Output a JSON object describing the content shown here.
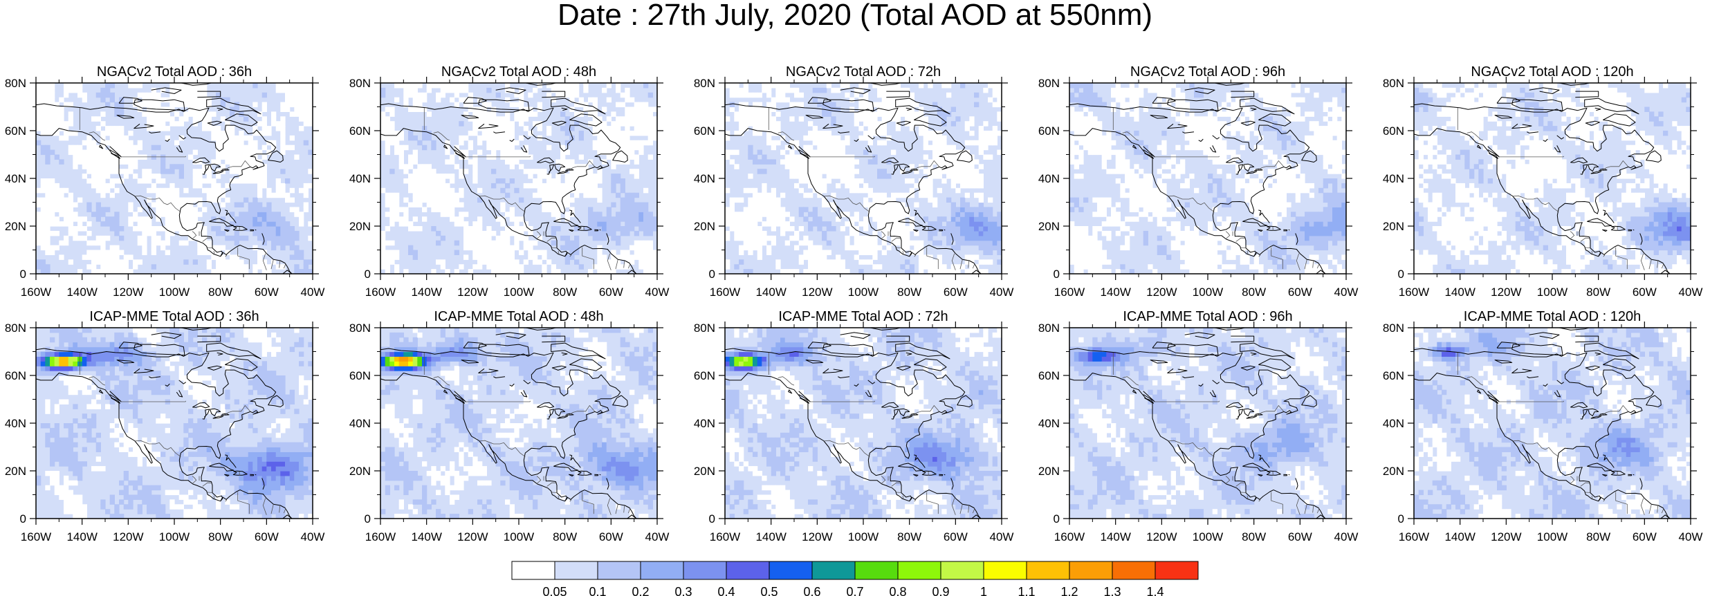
{
  "title": "Date : 27th July, 2020 (Total AOD at 550nm)",
  "rows": [
    {
      "model": "NGACv2",
      "panels": [
        {
          "title": "NGACv2 Total AOD : 36h",
          "lead": 36,
          "plume": {
            "level": 0,
            "lon": -150,
            "lat": 66
          },
          "saharan": {
            "level": 3,
            "lon": -55,
            "lat": 19
          }
        },
        {
          "title": "NGACv2 Total AOD : 48h",
          "lead": 48,
          "plume": {
            "level": 0,
            "lon": -150,
            "lat": 66
          },
          "saharan": {
            "level": 3,
            "lon": -55,
            "lat": 20
          }
        },
        {
          "title": "NGACv2 Total AOD : 72h",
          "lead": 72,
          "plume": {
            "level": 1,
            "lon": -155,
            "lat": 72
          },
          "saharan": {
            "level": 4,
            "lon": -45,
            "lat": 19
          }
        },
        {
          "title": "NGACv2 Total AOD : 96h",
          "lead": 96,
          "plume": {
            "level": 1,
            "lon": -155,
            "lat": 73
          },
          "saharan": {
            "level": 4,
            "lon": -45,
            "lat": 19
          }
        },
        {
          "title": "NGACv2 Total AOD : 120h",
          "lead": 120,
          "plume": {
            "level": 1,
            "lon": -155,
            "lat": 73
          },
          "saharan": {
            "level": 4,
            "lon": -45,
            "lat": 19
          }
        }
      ]
    },
    {
      "model": "ICAP-MME",
      "panels": [
        {
          "title": "ICAP-MME Total AOD : 36h",
          "lead": 36,
          "plume": {
            "level": 12,
            "lon": -148,
            "lat": 66
          },
          "saharan": {
            "level": 5,
            "lon": -58,
            "lat": 22
          }
        },
        {
          "title": "ICAP-MME Total AOD : 48h",
          "lead": 48,
          "plume": {
            "level": 12,
            "lon": -150,
            "lat": 66
          },
          "saharan": {
            "level": 4,
            "lon": -58,
            "lat": 22
          }
        },
        {
          "title": "ICAP-MME Total AOD : 72h",
          "lead": 72,
          "plume": {
            "level": 9,
            "lon": -152,
            "lat": 66
          },
          "saharan": {
            "level": 4,
            "lon": -65,
            "lat": 26
          }
        },
        {
          "title": "ICAP-MME Total AOD : 96h",
          "lead": 96,
          "plume": {
            "level": 5,
            "lon": -148,
            "lat": 68
          },
          "saharan": {
            "level": 3,
            "lon": -70,
            "lat": 30
          }
        },
        {
          "title": "ICAP-MME Total AOD : 120h",
          "lead": 120,
          "plume": {
            "level": 4,
            "lon": -145,
            "lat": 70
          },
          "saharan": {
            "level": 3,
            "lon": -70,
            "lat": 30
          }
        }
      ]
    }
  ],
  "map_extent": {
    "lon_min": -160,
    "lon_max": -40,
    "lat_min": 0,
    "lat_max": 80
  },
  "lon_ticks": [
    {
      "value": -160,
      "label": "160W"
    },
    {
      "value": -140,
      "label": "140W"
    },
    {
      "value": -120,
      "label": "120W"
    },
    {
      "value": -100,
      "label": "100W"
    },
    {
      "value": -80,
      "label": "80W"
    },
    {
      "value": -60,
      "label": "60W"
    },
    {
      "value": -40,
      "label": "40W"
    }
  ],
  "lat_ticks": [
    {
      "value": 0,
      "label": "0"
    },
    {
      "value": 20,
      "label": "20N"
    },
    {
      "value": 40,
      "label": "40N"
    },
    {
      "value": 60,
      "label": "60N"
    },
    {
      "value": 80,
      "label": "80N"
    }
  ],
  "colorbar": {
    "colors": [
      "#ffffff",
      "#d3def9",
      "#b4c5f6",
      "#92aef4",
      "#7c92f0",
      "#5c62ea",
      "#1560f0",
      "#0f9898",
      "#57dc0e",
      "#8ef70a",
      "#c3f846",
      "#fafd00",
      "#fec105",
      "#fb9e06",
      "#f86f05",
      "#f83214"
    ],
    "labels": [
      "0.05",
      "0.1",
      "0.2",
      "0.3",
      "0.4",
      "0.5",
      "0.6",
      "0.7",
      "0.8",
      "0.9",
      "1",
      "1.1",
      "1.2",
      "1.3",
      "1.4"
    ]
  },
  "style": {
    "coast_color": "#000000",
    "border_color": "#555555"
  }
}
